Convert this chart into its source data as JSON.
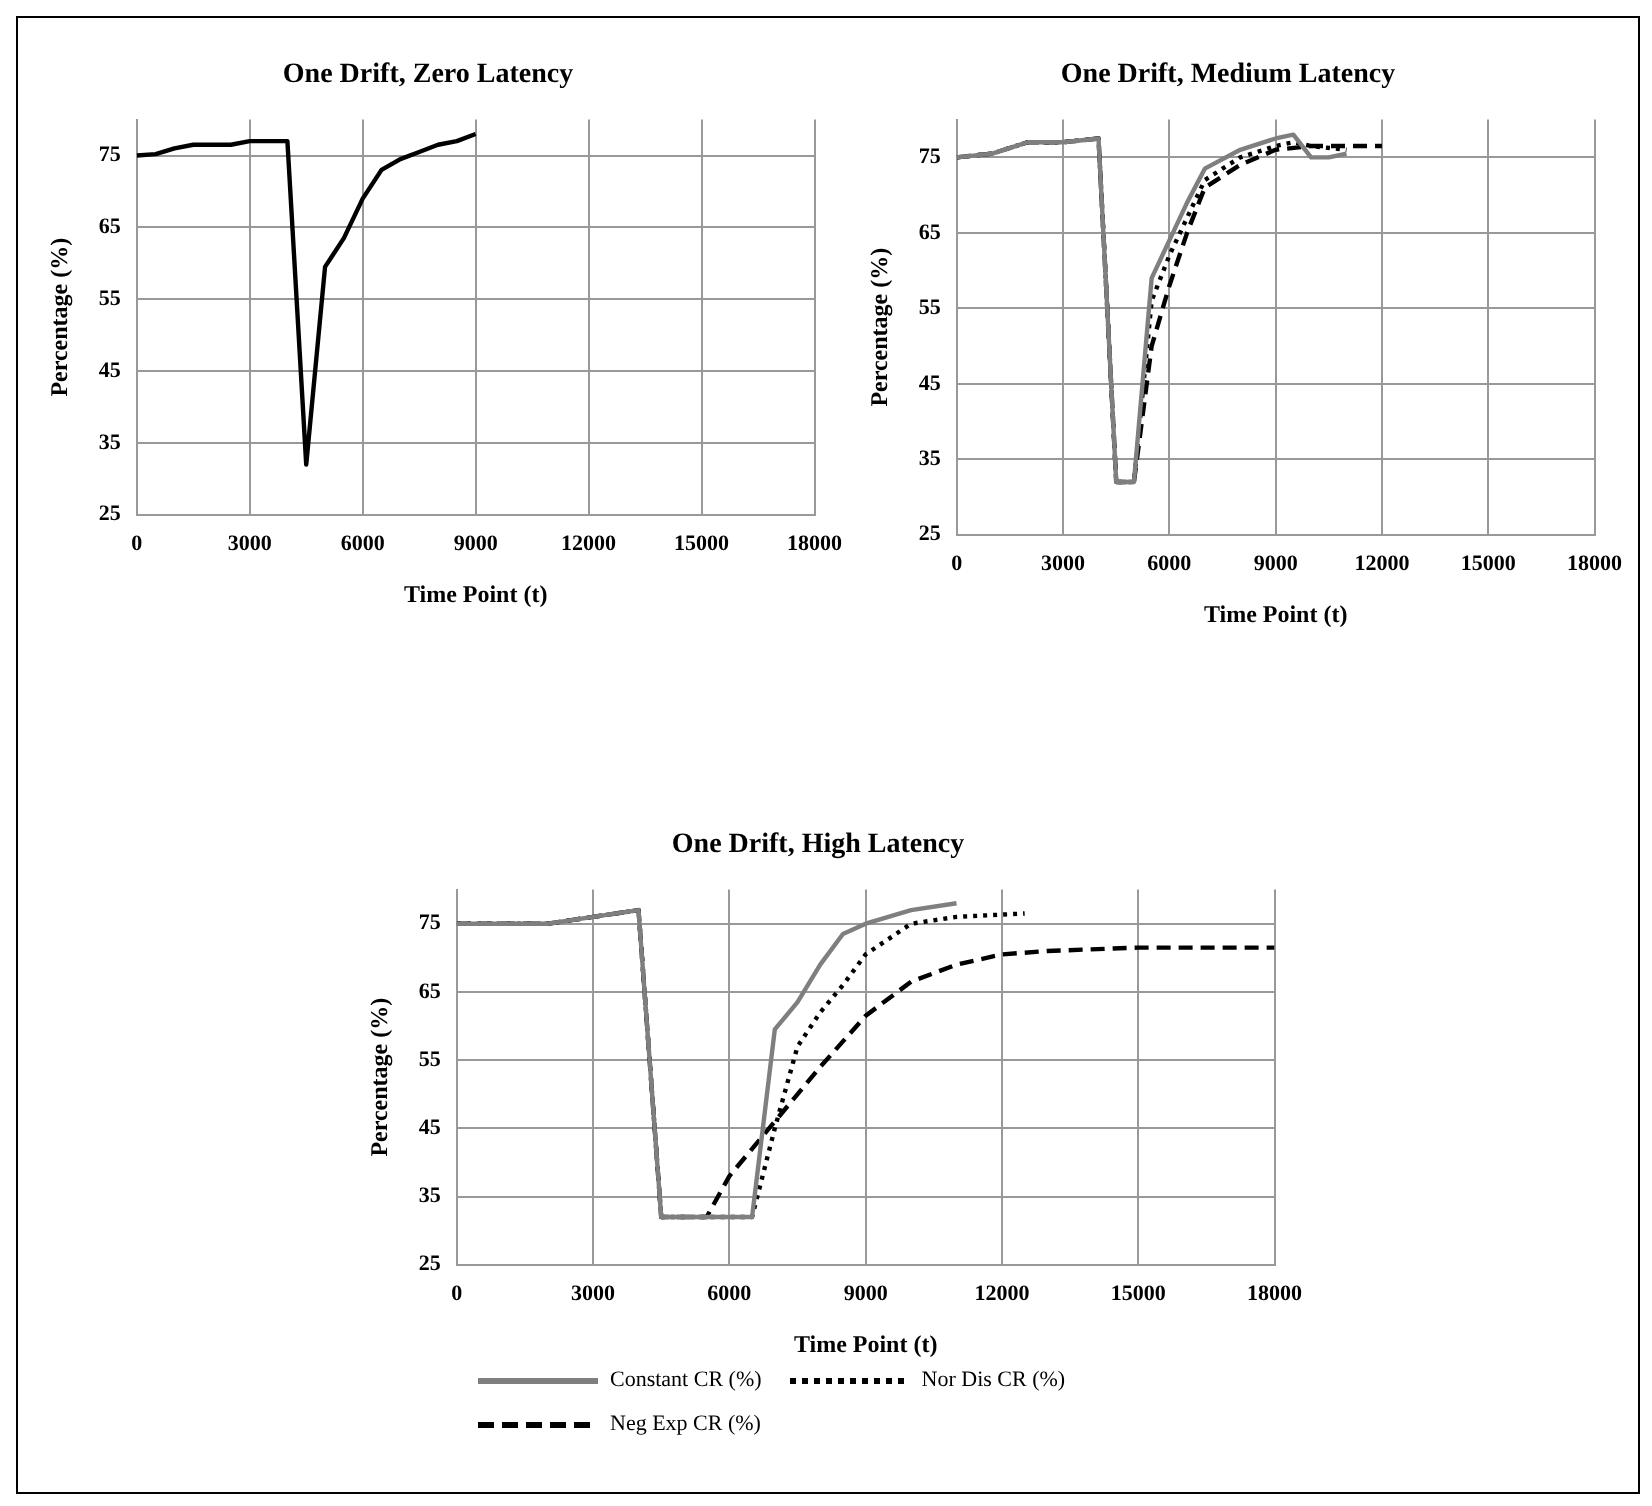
{
  "chart_data": [
    {
      "type": "line",
      "title": "One Drift, Zero Latency",
      "xlabel": "Time Point (t)",
      "ylabel": "Percentage (%)",
      "xlim": [
        0,
        18000
      ],
      "ylim": [
        25,
        80
      ],
      "xticks": [
        0,
        3000,
        6000,
        9000,
        12000,
        15000,
        18000
      ],
      "yticks": [
        25,
        35,
        45,
        55,
        65,
        75
      ],
      "grid": true,
      "legend": false,
      "marker": "none",
      "series": [
        {
          "color": "#000000",
          "line_style": "solid",
          "x": [
            0,
            500,
            1000,
            1500,
            2000,
            2500,
            3000,
            3500,
            4000,
            4500,
            5000,
            5500,
            6000,
            6500,
            7000,
            7500,
            8000,
            8500,
            9000
          ],
          "values": [
            75,
            75.2,
            76,
            76.5,
            76.5,
            76.5,
            77,
            77,
            77,
            32,
            59.5,
            63.5,
            69,
            73,
            74.5,
            75.5,
            76.5,
            77,
            78
          ]
        }
      ]
    },
    {
      "type": "line",
      "title": "One Drift, Medium Latency",
      "xlabel": "Time Point (t)",
      "ylabel": "Percentage (%)",
      "xlim": [
        0,
        18000
      ],
      "ylim": [
        25,
        80
      ],
      "xticks": [
        0,
        3000,
        6000,
        9000,
        12000,
        15000,
        18000
      ],
      "yticks": [
        25,
        35,
        45,
        55,
        65,
        75
      ],
      "grid": true,
      "legend": false,
      "marker": "none",
      "series": [
        {
          "color": "#7f7f7f",
          "line_style": "solid",
          "x": [
            0,
            1000,
            2000,
            3000,
            4000,
            4500,
            5000,
            5500,
            6000,
            6500,
            7000,
            8000,
            9000,
            9500,
            10000,
            10500,
            11000
          ],
          "values": [
            75,
            75.5,
            77,
            77,
            77.5,
            32,
            32,
            59,
            64,
            69,
            73.5,
            76,
            77.5,
            78,
            75,
            75,
            75.5
          ]
        },
        {
          "color": "#000000",
          "line_style": "dotted",
          "x": [
            0,
            1000,
            2000,
            3000,
            4000,
            4500,
            5000,
            5500,
            6000,
            6500,
            7000,
            8000,
            9000,
            9500,
            10000,
            11000
          ],
          "values": [
            75,
            75.5,
            77,
            77,
            77.5,
            32,
            32,
            56,
            62,
            67,
            72,
            75,
            76.5,
            77,
            76.5,
            76
          ]
        },
        {
          "color": "#000000",
          "line_style": "dashed",
          "x": [
            0,
            1000,
            2000,
            3000,
            4000,
            4500,
            5000,
            5500,
            6000,
            6500,
            7000,
            8000,
            9000,
            10000,
            11000,
            12000
          ],
          "values": [
            75,
            75.5,
            77,
            77,
            77.5,
            32,
            32,
            50,
            58,
            65,
            71,
            74,
            76,
            76.5,
            76.5,
            76.5
          ]
        }
      ]
    },
    {
      "type": "line",
      "title": "One Drift, High Latency",
      "xlabel": "Time Point (t)",
      "ylabel": "Percentage (%)",
      "xlim": [
        0,
        18000
      ],
      "ylim": [
        25,
        80
      ],
      "xticks": [
        0,
        3000,
        6000,
        9000,
        12000,
        15000,
        18000
      ],
      "yticks": [
        25,
        35,
        45,
        55,
        65,
        75
      ],
      "grid": true,
      "legend": "bottom",
      "marker": "none",
      "series": [
        {
          "name": "Constant CR (%)",
          "color": "#7f7f7f",
          "line_style": "solid",
          "x": [
            0,
            2000,
            3000,
            4000,
            4500,
            5000,
            6000,
            6500,
            7000,
            7500,
            8000,
            8500,
            9000,
            10000,
            11000
          ],
          "values": [
            75,
            75,
            76,
            77,
            32,
            32,
            32,
            32,
            59.5,
            63.5,
            69,
            73.5,
            75,
            77,
            78
          ]
        },
        {
          "name": "Nor Dis CR (%)",
          "color": "#000000",
          "line_style": "dotted",
          "x": [
            0,
            2000,
            3000,
            4000,
            4500,
            5000,
            6000,
            6500,
            7000,
            7500,
            8000,
            8500,
            9000,
            10000,
            11000,
            12500
          ],
          "values": [
            75,
            75,
            76,
            77,
            32,
            32,
            32,
            32,
            45,
            57,
            62,
            66,
            70.5,
            75,
            76,
            76.5
          ]
        },
        {
          "name": "Neg Exp CR (%)",
          "color": "#000000",
          "line_style": "dashed",
          "x": [
            0,
            2000,
            3000,
            4000,
            4500,
            5500,
            6000,
            7000,
            8000,
            9000,
            10000,
            11000,
            12000,
            13000,
            15000,
            18000
          ],
          "values": [
            75,
            75,
            76,
            77,
            32,
            32,
            38,
            46,
            54,
            61.5,
            66.5,
            69,
            70.5,
            71,
            71.5,
            71.5
          ]
        }
      ]
    }
  ]
}
